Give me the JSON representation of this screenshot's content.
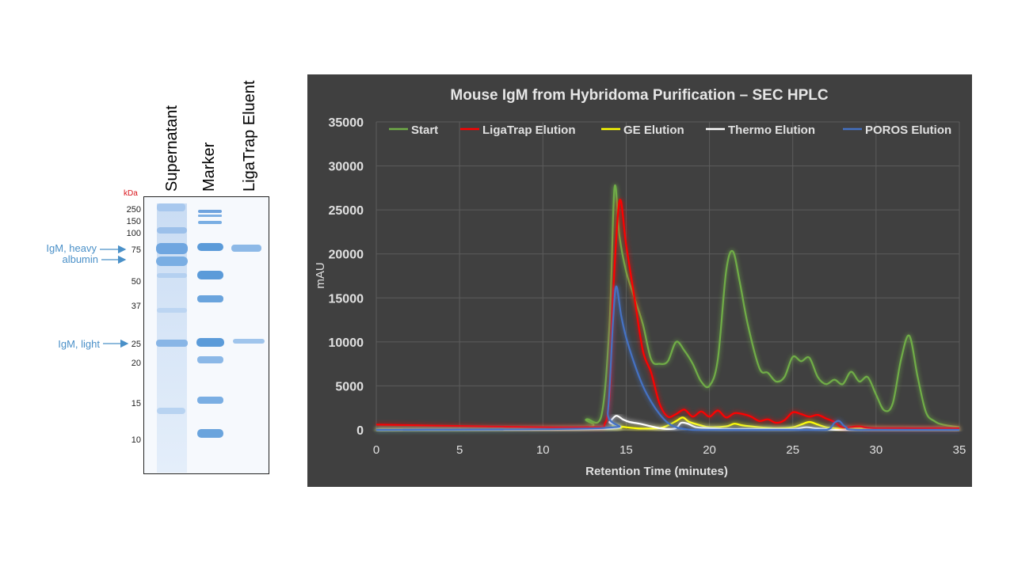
{
  "gel": {
    "lanes": [
      "Supernatant",
      "Marker",
      "LigaTrap Eluent"
    ],
    "unit": "kDa",
    "markers": [
      "250",
      "150",
      "100",
      "75",
      "50",
      "37",
      "25",
      "20",
      "15",
      "10"
    ],
    "annotations": {
      "heavy": "IgM, heavy",
      "albumin": "albumin",
      "light": "IgM, light"
    },
    "colors": {
      "band": "#5b9bd9",
      "annotation": "#4a90c8",
      "unit": "#d9141b"
    }
  },
  "chart_data": {
    "type": "line",
    "title": "Mouse IgM from Hybridoma Purification – SEC HPLC",
    "xlabel": "Retention Time (minutes)",
    "ylabel": "mAU",
    "xlim": [
      0,
      35
    ],
    "ylim": [
      0,
      35000
    ],
    "xticks": [
      0,
      5,
      10,
      15,
      20,
      25,
      30,
      35
    ],
    "yticks": [
      0,
      5000,
      10000,
      15000,
      20000,
      25000,
      30000,
      35000
    ],
    "grid": true,
    "legend": "top",
    "background": "#404040",
    "series": [
      {
        "name": "Start",
        "color": "#70ad47",
        "x": [
          0,
          12,
          12.6,
          13.5,
          14.0,
          14.3,
          14.6,
          15.0,
          15.5,
          16.0,
          16.5,
          17.0,
          17.5,
          18.0,
          18.5,
          19.0,
          19.5,
          20.0,
          20.5,
          21.0,
          21.4,
          21.8,
          22.3,
          23.0,
          23.5,
          24.0,
          24.5,
          25.0,
          25.5,
          26.0,
          26.5,
          27.0,
          27.5,
          28.0,
          28.5,
          29.0,
          29.5,
          30.0,
          30.5,
          31.0,
          31.5,
          32.0,
          32.5,
          33.0,
          33.5,
          34.0,
          35.0
        ],
        "y": [
          0,
          200,
          1200,
          1500,
          12000,
          27500,
          22000,
          18000,
          15000,
          12000,
          8000,
          7500,
          7800,
          10000,
          9000,
          7500,
          5500,
          5000,
          8000,
          18000,
          20300,
          17000,
          12000,
          7000,
          6500,
          5500,
          6000,
          8300,
          7800,
          8200,
          6000,
          5200,
          5700,
          5200,
          6600,
          5500,
          6000,
          4000,
          2200,
          3000,
          8000,
          10700,
          6000,
          2000,
          1000,
          600,
          300
        ]
      },
      {
        "name": "LigaTrap Elution",
        "color": "#ff0000",
        "x": [
          0,
          12,
          13.8,
          14.2,
          14.6,
          15.0,
          15.5,
          16.0,
          16.5,
          17.0,
          17.5,
          18.0,
          18.5,
          19.0,
          19.5,
          20.0,
          20.5,
          21.0,
          21.5,
          22.0,
          22.5,
          23.0,
          23.5,
          24.0,
          24.5,
          25.0,
          25.5,
          26.0,
          26.5,
          27.0,
          27.5,
          28.0,
          29.0,
          30.0,
          35.0
        ],
        "y": [
          600,
          300,
          1000,
          15000,
          26000,
          21000,
          15000,
          9000,
          6500,
          3000,
          1500,
          1800,
          2300,
          1500,
          2100,
          1500,
          2200,
          1400,
          1900,
          1800,
          1500,
          1000,
          1200,
          800,
          1100,
          2000,
          1800,
          1500,
          1700,
          1300,
          900,
          300,
          400,
          200,
          200
        ]
      },
      {
        "name": "GE Elution",
        "color": "#ffff00",
        "x": [
          0,
          13.5,
          14.2,
          14.6,
          15.0,
          15.5,
          16.0,
          17.0,
          17.5,
          18.0,
          18.4,
          18.8,
          19.5,
          20.0,
          21.0,
          21.5,
          22.0,
          23.0,
          24.0,
          25.0,
          25.5,
          26.0,
          26.5,
          27.0,
          27.5,
          28.0,
          29.0,
          30.0,
          35.0
        ],
        "y": [
          0,
          100,
          500,
          400,
          300,
          200,
          150,
          200,
          500,
          1000,
          1400,
          900,
          500,
          300,
          400,
          700,
          500,
          300,
          200,
          300,
          600,
          900,
          600,
          300,
          200,
          100,
          200,
          100,
          0
        ]
      },
      {
        "name": "Thermo Elution",
        "color": "#ffffff",
        "x": [
          0,
          13.5,
          14.0,
          14.4,
          14.8,
          15.2,
          15.8,
          16.5,
          17.0,
          17.5,
          18.0,
          18.3,
          18.7,
          19.2,
          20.0,
          21.0,
          22.0,
          23.0,
          24.0,
          25.0,
          25.8,
          26.3,
          27.0,
          28.0,
          35.0
        ],
        "y": [
          0,
          100,
          900,
          1600,
          1200,
          900,
          700,
          400,
          200,
          100,
          200,
          800,
          700,
          300,
          200,
          100,
          100,
          100,
          100,
          100,
          300,
          200,
          100,
          0,
          0
        ]
      },
      {
        "name": "POROS Elution",
        "color": "#4472c4",
        "x": [
          0,
          13.5,
          13.9,
          14.2,
          14.4,
          14.7,
          15.0,
          15.5,
          16.0,
          16.5,
          17.0,
          17.5,
          18.0,
          18.5,
          19.0,
          20.0,
          25.0,
          27.0,
          27.5,
          27.8,
          28.2,
          29.0,
          35.0
        ],
        "y": [
          0,
          200,
          2000,
          12000,
          16300,
          13000,
          10500,
          7500,
          5000,
          3200,
          1800,
          800,
          300,
          100,
          0,
          0,
          0,
          0,
          800,
          1000,
          300,
          0,
          0
        ]
      }
    ]
  }
}
